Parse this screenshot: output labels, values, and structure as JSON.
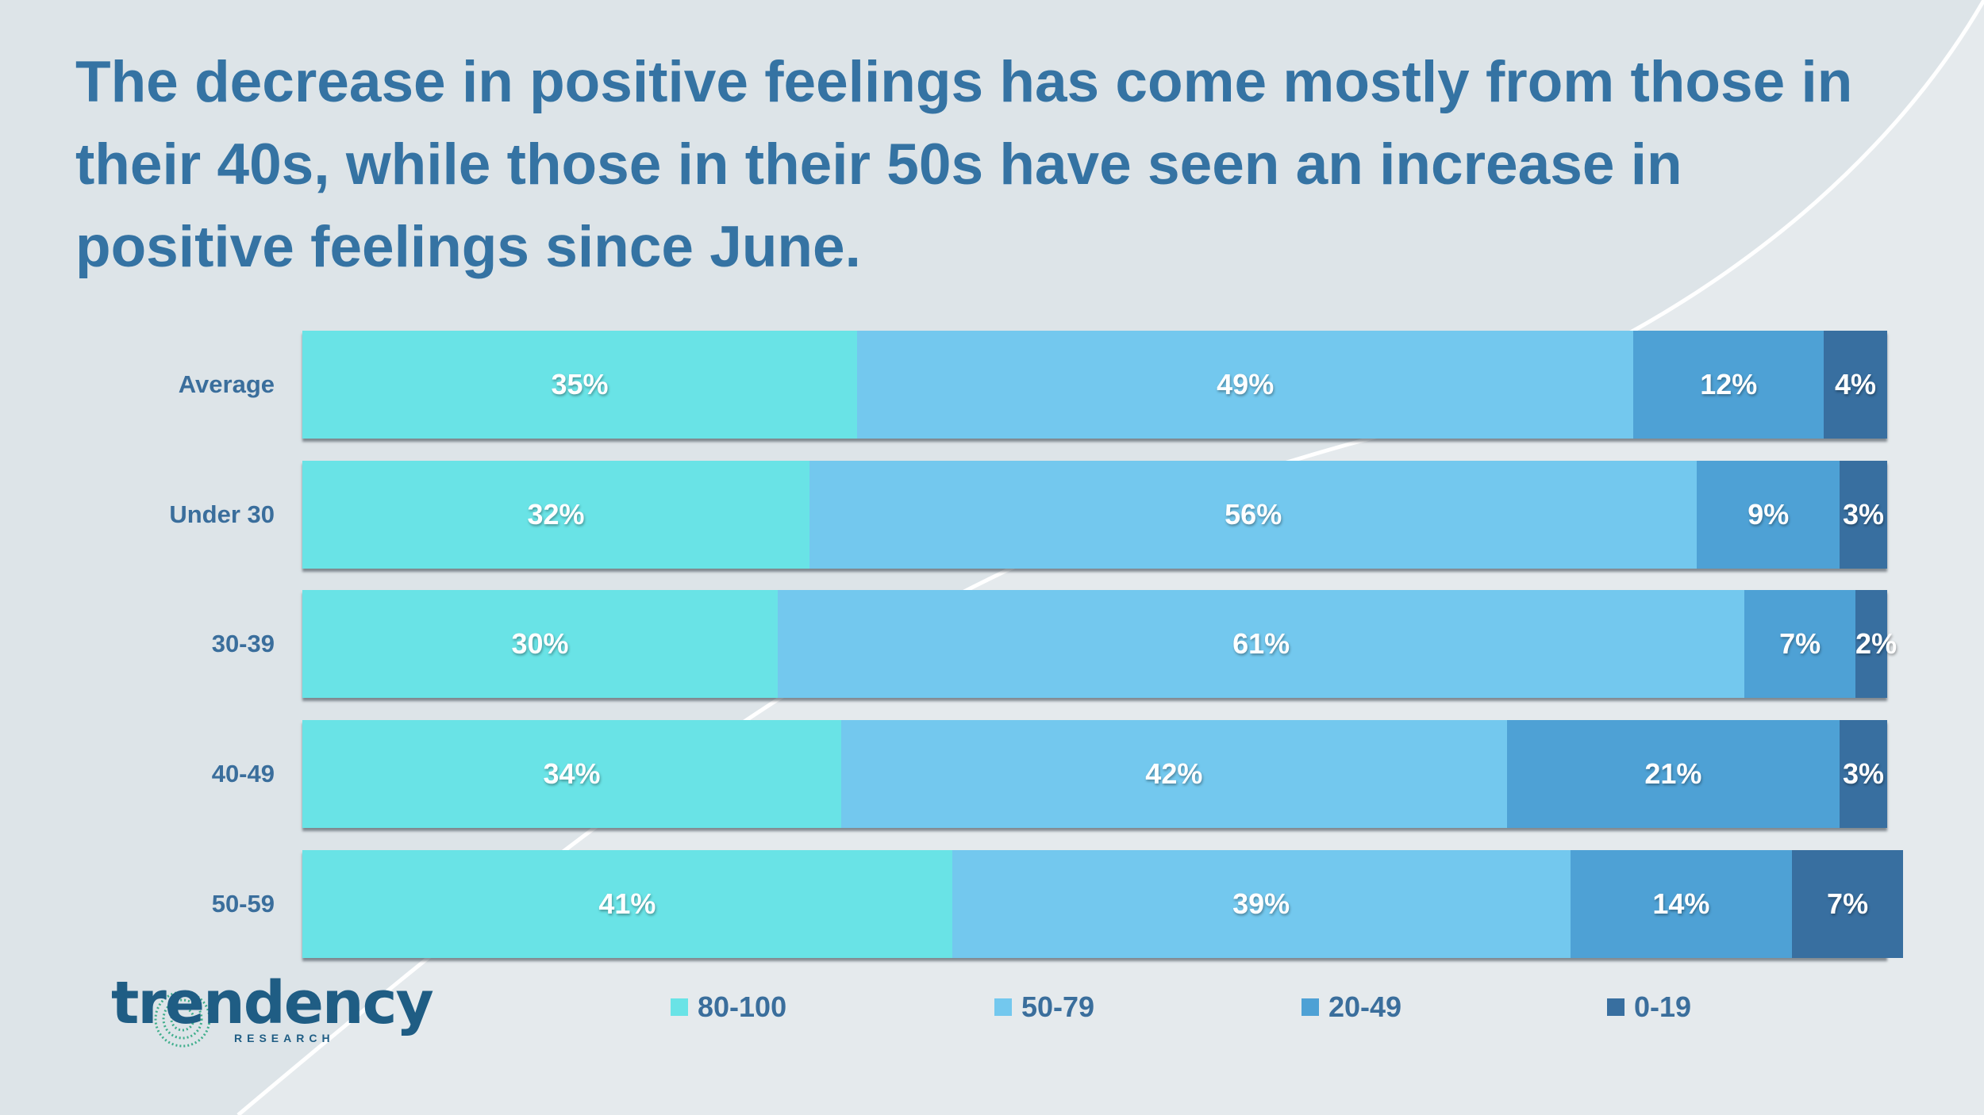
{
  "title": "The decrease in positive feelings has come mostly from those in their 40s, while those in their 50s have seen an increase in positive feelings since June.",
  "logo": {
    "word": "trendency",
    "sub": "RESEARCH",
    "registered": "®"
  },
  "colors": {
    "background": "#dde4e8",
    "title": "#3573a3",
    "series": [
      "#69e3e6",
      "#73c8ee",
      "#4ea1d5",
      "#386fa0"
    ]
  },
  "chart_data": {
    "type": "bar",
    "orientation": "horizontal",
    "stacked": true,
    "categories": [
      "Average",
      "Under 30",
      "30-39",
      "40-49",
      "50-59"
    ],
    "series": [
      {
        "name": "80-100",
        "values": [
          35,
          32,
          30,
          34,
          41
        ],
        "labels": [
          "35%",
          "32%",
          "30%",
          "34%",
          "41%"
        ]
      },
      {
        "name": "50-79",
        "values": [
          49,
          56,
          61,
          42,
          39
        ],
        "labels": [
          "49%",
          "56%",
          "61%",
          "42%",
          "39%"
        ]
      },
      {
        "name": "20-49",
        "values": [
          12,
          9,
          7,
          21,
          14
        ],
        "labels": [
          "12%",
          "9%",
          "7%",
          "21%",
          "14%"
        ]
      },
      {
        "name": "0-19",
        "values": [
          4,
          3,
          2,
          3,
          7
        ],
        "labels": [
          "4%",
          "3%",
          "2%",
          "3%",
          "7%"
        ]
      }
    ],
    "xlim": [
      0,
      100
    ],
    "legend": "bottom",
    "grid": false
  }
}
